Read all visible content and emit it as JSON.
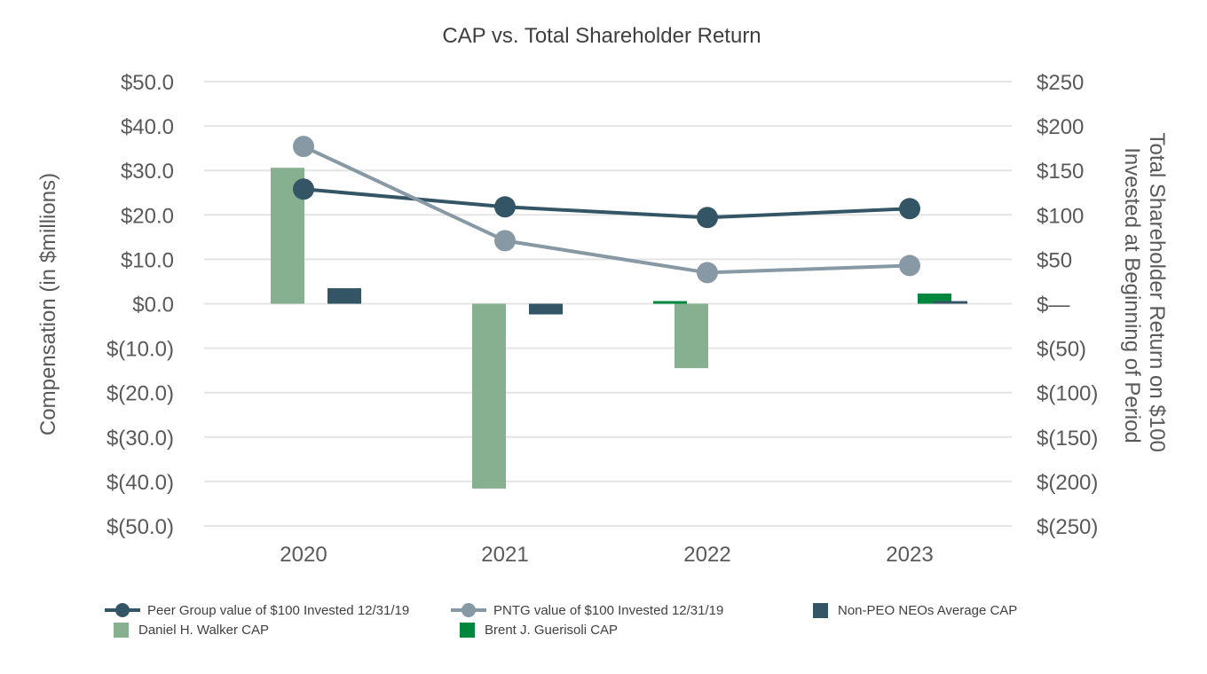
{
  "chart_data": {
    "type": "bar",
    "title": "CAP vs. Total Shareholder Return",
    "categories": [
      "2020",
      "2021",
      "2022",
      "2023"
    ],
    "ylabel": "Compensation (in $millions)",
    "y2label_line1": "Total Shareholder Return on $100",
    "y2label_line2": "Invested at Beginning of Period",
    "ylim": [
      -50,
      50
    ],
    "y2lim": [
      -250,
      250
    ],
    "yticks": [
      {
        "value": 50,
        "label": "$50.0"
      },
      {
        "value": 40,
        "label": "$40.0"
      },
      {
        "value": 30,
        "label": "$30.0"
      },
      {
        "value": 20,
        "label": "$20.0"
      },
      {
        "value": 10,
        "label": "$10.0"
      },
      {
        "value": 0,
        "label": "$0.0"
      },
      {
        "value": -10,
        "label": "$(10.0)"
      },
      {
        "value": -20,
        "label": "$(20.0)"
      },
      {
        "value": -30,
        "label": "$(30.0)"
      },
      {
        "value": -40,
        "label": "$(40.0)"
      },
      {
        "value": -50,
        "label": "$(50.0)"
      }
    ],
    "y2ticks": [
      {
        "value": 250,
        "label": "$250"
      },
      {
        "value": 200,
        "label": "$200"
      },
      {
        "value": 150,
        "label": "$150"
      },
      {
        "value": 100,
        "label": "$100"
      },
      {
        "value": 50,
        "label": "$50"
      },
      {
        "value": 0,
        "label": "$—"
      },
      {
        "value": -50,
        "label": "$(50)"
      },
      {
        "value": -100,
        "label": "$(100)"
      },
      {
        "value": -150,
        "label": "$(150)"
      },
      {
        "value": -200,
        "label": "$(200)"
      },
      {
        "value": -250,
        "label": "$(250)"
      }
    ],
    "bar_series": [
      {
        "name": "Daniel H. Walker CAP",
        "color": "#86b08f",
        "slot": 0,
        "values": [
          30.6,
          -41.6,
          -14.5,
          null
        ]
      },
      {
        "name": "Brent J. Guerisoli CAP",
        "color": "#00873e",
        "slot": 1,
        "values": [
          null,
          null,
          0.6,
          2.3
        ]
      },
      {
        "name": "Non-PEO NEOs Average CAP",
        "color": "#335566",
        "slot": 2,
        "values": [
          3.5,
          -2.4,
          null,
          0.6
        ]
      }
    ],
    "line_series": [
      {
        "name": "Peer Group value of $100 Invested 12/31/19",
        "color": "#335566",
        "axis": "right",
        "values": [
          129,
          109,
          97,
          107
        ]
      },
      {
        "name": "PNTG value of $100 Invested 12/31/19",
        "color": "#8799a5",
        "axis": "right",
        "values": [
          177,
          71,
          35,
          43
        ]
      }
    ],
    "legend": {
      "position": "bottom",
      "entries": [
        {
          "kind": "line",
          "series": "Peer Group value of $100 Invested 12/31/19",
          "color": "#335566"
        },
        {
          "kind": "line",
          "series": "PNTG value of $100 Invested 12/31/19",
          "color": "#8799a5"
        },
        {
          "kind": "bar",
          "series": "Non-PEO NEOs Average CAP",
          "color": "#335566"
        },
        {
          "kind": "bar",
          "series": "Daniel H. Walker CAP",
          "color": "#86b08f"
        },
        {
          "kind": "bar",
          "series": "Brent J. Guerisoli CAP",
          "color": "#00873e"
        }
      ]
    }
  }
}
